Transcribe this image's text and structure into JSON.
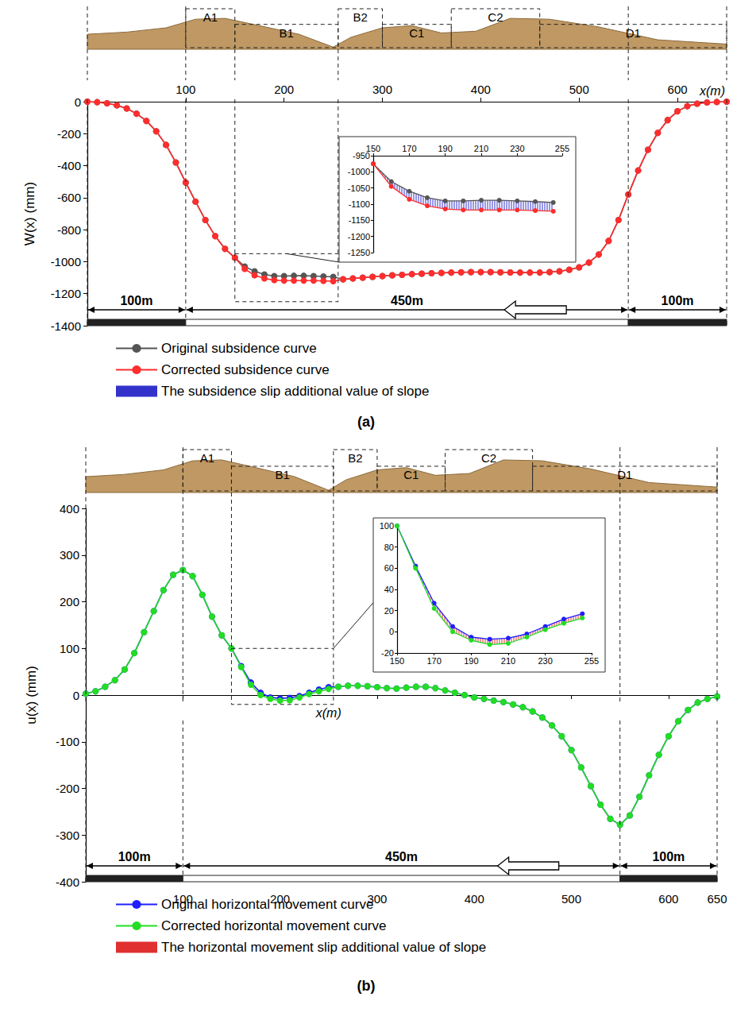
{
  "chart_data": [
    {
      "type": "line",
      "title": "(a)",
      "x_label": "x(m)",
      "y_label": "W(x) (mm)",
      "xlim": [
        0,
        650
      ],
      "ylim": [
        -1400,
        0
      ],
      "xticks": [
        100,
        200,
        300,
        400,
        500,
        600
      ],
      "yticks": [
        -1400,
        -1200,
        -1000,
        -800,
        -600,
        -400,
        -200,
        0
      ],
      "grid": false,
      "marker": "circle",
      "legend": "bottom",
      "x": [
        0,
        10,
        20,
        30,
        40,
        50,
        60,
        70,
        80,
        90,
        100,
        110,
        120,
        130,
        140,
        150,
        160,
        170,
        180,
        190,
        200,
        210,
        220,
        230,
        240,
        250,
        260,
        270,
        280,
        290,
        300,
        310,
        320,
        330,
        340,
        350,
        360,
        370,
        380,
        390,
        400,
        410,
        420,
        430,
        440,
        450,
        460,
        470,
        480,
        490,
        500,
        510,
        520,
        530,
        540,
        550,
        560,
        570,
        580,
        590,
        600,
        610,
        620,
        630,
        640,
        650
      ],
      "series": [
        {
          "name": "Original subsidence curve",
          "color": "#555555",
          "values": [
            0,
            -3,
            -10,
            -22,
            -42,
            -75,
            -120,
            -185,
            -270,
            -380,
            -505,
            -625,
            -740,
            -840,
            -920,
            -975,
            -1030,
            -1060,
            -1080,
            -1090,
            -1090,
            -1088,
            -1088,
            -1090,
            -1092,
            -1095,
            -1110,
            -1105,
            -1100,
            -1095,
            -1090,
            -1085,
            -1082,
            -1078,
            -1075,
            -1072,
            -1070,
            -1068,
            -1066,
            -1065,
            -1065,
            -1065,
            -1066,
            -1067,
            -1068,
            -1068,
            -1068,
            -1065,
            -1060,
            -1050,
            -1035,
            -1005,
            -955,
            -870,
            -740,
            -580,
            -430,
            -300,
            -195,
            -115,
            -60,
            -28,
            -12,
            -5,
            -2,
            0
          ]
        },
        {
          "name": "Corrected subsidence curve",
          "color": "#ff2d2d",
          "values": [
            0,
            -3,
            -10,
            -22,
            -42,
            -75,
            -120,
            -185,
            -270,
            -380,
            -505,
            -625,
            -740,
            -840,
            -920,
            -975,
            -1045,
            -1085,
            -1105,
            -1115,
            -1118,
            -1118,
            -1118,
            -1118,
            -1120,
            -1122,
            -1110,
            -1105,
            -1100,
            -1095,
            -1090,
            -1085,
            -1082,
            -1078,
            -1075,
            -1072,
            -1070,
            -1068,
            -1066,
            -1065,
            -1065,
            -1065,
            -1066,
            -1067,
            -1068,
            -1068,
            -1068,
            -1065,
            -1060,
            -1050,
            -1035,
            -1005,
            -955,
            -870,
            -740,
            -580,
            -430,
            -300,
            -195,
            -115,
            -60,
            -28,
            -12,
            -5,
            -2,
            0
          ]
        }
      ],
      "band": {
        "name": "The subsidence slip additional value of slope",
        "color": "#3333cc"
      },
      "inset": {
        "xlim": [
          150,
          255
        ],
        "ylim": [
          -1250,
          -950
        ],
        "xticks": [
          150,
          170,
          190,
          210,
          230,
          255
        ],
        "yticks": [
          -1250,
          -1200,
          -1150,
          -1100,
          -1050,
          -1000,
          -950
        ],
        "x": [
          150,
          160,
          170,
          180,
          190,
          200,
          210,
          220,
          230,
          240,
          250
        ],
        "series": [
          {
            "values": [
              -975,
              -1030,
              -1060,
              -1080,
              -1090,
              -1090,
              -1088,
              -1088,
              -1090,
              -1092,
              -1095
            ]
          },
          {
            "values": [
              -975,
              -1045,
              -1085,
              -1105,
              -1115,
              -1118,
              -1118,
              -1118,
              -1118,
              -1120,
              -1122
            ]
          }
        ]
      },
      "regions": [
        {
          "label": "A1",
          "from": 100,
          "to": 150
        },
        {
          "label": "B1",
          "from": 150,
          "to": 255
        },
        {
          "label": "B2",
          "from": 255,
          "to": 300
        },
        {
          "label": "C1",
          "from": 300,
          "to": 370
        },
        {
          "label": "C2",
          "from": 370,
          "to": 460
        },
        {
          "label": "D1",
          "from": 460,
          "to": 650
        }
      ],
      "spans": [
        {
          "text": "100m",
          "from": 0,
          "to": 100,
          "color": "#222222"
        },
        {
          "text": "450m",
          "from": 100,
          "to": 550,
          "color": "#ffffff"
        },
        {
          "text": "100m",
          "from": 550,
          "to": 650,
          "color": "#222222"
        }
      ]
    },
    {
      "type": "line",
      "title": "(b)",
      "x_label": "x(m)",
      "y_label": "u(x) (mm)",
      "xlim": [
        0,
        650
      ],
      "ylim": [
        -400,
        400
      ],
      "xticks": [
        100,
        200,
        300,
        400,
        500,
        600,
        650
      ],
      "yticks": [
        -400,
        -300,
        -200,
        -100,
        0,
        100,
        200,
        300,
        400
      ],
      "grid": false,
      "marker": "circle",
      "legend": "bottom",
      "x": [
        0,
        10,
        20,
        30,
        40,
        50,
        60,
        70,
        80,
        90,
        100,
        110,
        120,
        130,
        140,
        150,
        160,
        170,
        180,
        190,
        200,
        210,
        220,
        230,
        240,
        250,
        260,
        270,
        280,
        290,
        300,
        310,
        320,
        330,
        340,
        350,
        360,
        370,
        380,
        390,
        400,
        410,
        420,
        430,
        440,
        450,
        460,
        470,
        480,
        490,
        500,
        510,
        520,
        530,
        540,
        550,
        560,
        570,
        580,
        590,
        600,
        610,
        620,
        630,
        640,
        650
      ],
      "series": [
        {
          "name": "Original horizontal movement curve",
          "color": "#1f1fff",
          "values": [
            3,
            8,
            18,
            32,
            55,
            90,
            135,
            180,
            225,
            258,
            268,
            255,
            215,
            168,
            128,
            100,
            62,
            27,
            5,
            -5,
            -7,
            -6,
            -2,
            5,
            12,
            17,
            18,
            20,
            20,
            19,
            17,
            15,
            14,
            16,
            18,
            18,
            15,
            10,
            5,
            0,
            -5,
            -8,
            -12,
            -15,
            -20,
            -26,
            -35,
            -48,
            -65,
            -88,
            -118,
            -155,
            -195,
            -235,
            -265,
            -278,
            -258,
            -218,
            -172,
            -128,
            -88,
            -56,
            -32,
            -16,
            -8,
            -3
          ]
        },
        {
          "name": "Corrected horizontal movement curve",
          "color": "#22dd22",
          "values": [
            3,
            8,
            18,
            32,
            55,
            90,
            135,
            180,
            225,
            258,
            268,
            255,
            215,
            168,
            128,
            100,
            60,
            22,
            0,
            -8,
            -12,
            -11,
            -5,
            2,
            8,
            13,
            18,
            20,
            20,
            19,
            17,
            15,
            14,
            16,
            18,
            18,
            15,
            10,
            5,
            0,
            -5,
            -8,
            -12,
            -15,
            -20,
            -26,
            -35,
            -48,
            -65,
            -88,
            -118,
            -155,
            -195,
            -235,
            -265,
            -278,
            -258,
            -218,
            -172,
            -128,
            -88,
            -56,
            -32,
            -16,
            -8,
            -3
          ]
        }
      ],
      "band": {
        "name": "The horizontal movement slip additional value of slope",
        "color": "#e03030"
      },
      "inset": {
        "xlim": [
          150,
          255
        ],
        "ylim": [
          -20,
          100
        ],
        "xticks": [
          150,
          170,
          190,
          210,
          230,
          255
        ],
        "yticks": [
          -20,
          0,
          20,
          40,
          60,
          80,
          100
        ],
        "x": [
          150,
          160,
          170,
          180,
          190,
          200,
          210,
          220,
          230,
          240,
          250
        ],
        "series": [
          {
            "values": [
              100,
              62,
              27,
              5,
              -5,
              -7,
              -6,
              -2,
              5,
              12,
              17
            ]
          },
          {
            "values": [
              100,
              60,
              22,
              0,
              -8,
              -12,
              -11,
              -5,
              2,
              8,
              13
            ]
          }
        ]
      },
      "regions": [
        {
          "label": "A1",
          "from": 100,
          "to": 150
        },
        {
          "label": "B1",
          "from": 150,
          "to": 255
        },
        {
          "label": "B2",
          "from": 255,
          "to": 300
        },
        {
          "label": "C1",
          "from": 300,
          "to": 370
        },
        {
          "label": "C2",
          "from": 370,
          "to": 460
        },
        {
          "label": "D1",
          "from": 460,
          "to": 650
        }
      ],
      "spans": [
        {
          "text": "100m",
          "from": 0,
          "to": 100,
          "color": "#222222"
        },
        {
          "text": "450m",
          "from": 100,
          "to": 550,
          "color": "#ffffff"
        },
        {
          "text": "100m",
          "from": 550,
          "to": 650,
          "color": "#222222"
        }
      ]
    }
  ]
}
